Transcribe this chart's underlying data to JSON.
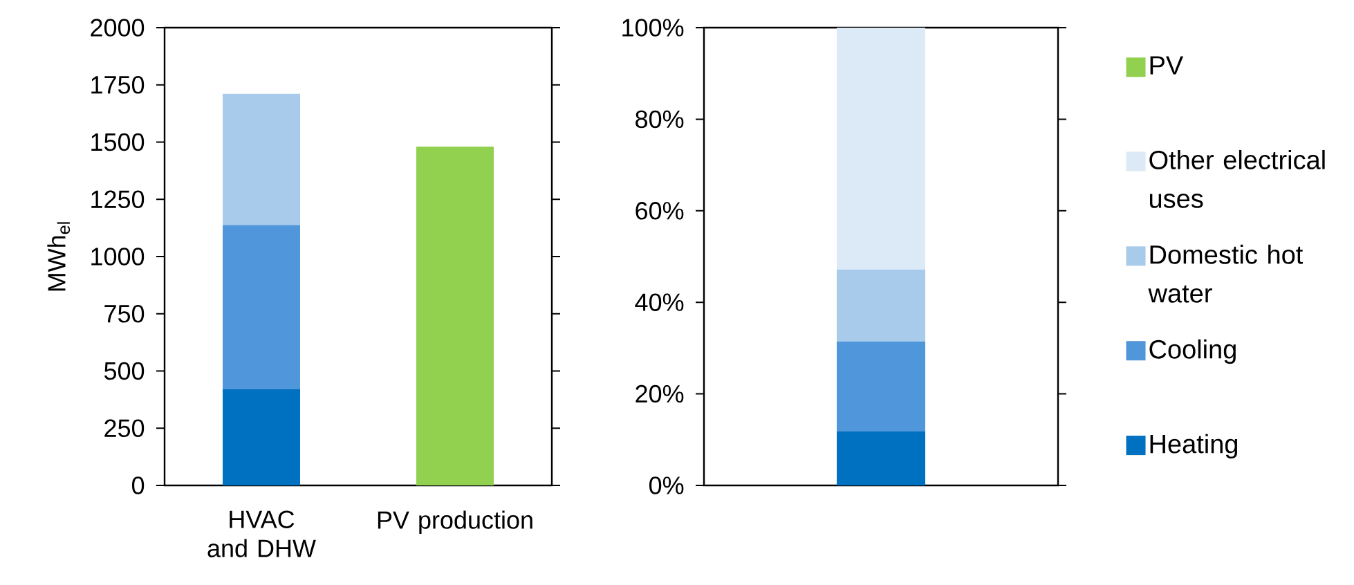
{
  "chart_data": [
    {
      "type": "bar",
      "stacked": true,
      "categories": [
        "HVAC and DHW",
        "PV production"
      ],
      "ylabel": "MWh$_{el}$",
      "ylim": [
        0,
        2000
      ],
      "yticks": [
        0,
        250,
        500,
        750,
        1000,
        1250,
        1500,
        1750,
        2000
      ],
      "grid": false,
      "legend": false,
      "series": [
        {
          "color": "#0070c0",
          "values": [
            420,
            null
          ]
        },
        {
          "color": "#5096da",
          "values": [
            718,
            null
          ]
        },
        {
          "color": "#a8cbec",
          "values": [
            573,
            null
          ]
        },
        {
          "color": "#92d050",
          "values": [
            null,
            1480
          ]
        }
      ]
    },
    {
      "type": "bar",
      "stacked": true,
      "categories": [
        null
      ],
      "ylim": [
        0,
        100
      ],
      "yticks": [
        {
          "value": 0,
          "label": "0%"
        },
        {
          "value": 20,
          "label": "20%"
        },
        {
          "value": 40,
          "label": "40%"
        },
        {
          "value": 60,
          "label": "60%"
        },
        {
          "value": 80,
          "label": "80%"
        },
        {
          "value": 100,
          "label": "100%"
        }
      ],
      "grid": false,
      "legend": "right",
      "series": [
        {
          "name": "Heating",
          "color": "#0070c0",
          "values": [
            11.8
          ]
        },
        {
          "name": "Cooling",
          "color": "#5096da",
          "values": [
            19.7
          ]
        },
        {
          "name": "Domestic hot water",
          "color": "#a8cbec",
          "values": [
            15.7
          ]
        },
        {
          "name": "Other electrical uses",
          "color": "#dce9f6",
          "values": [
            52.8
          ]
        },
        {
          "name": "PV",
          "color": "#92d050",
          "values": [
            null
          ]
        }
      ]
    }
  ]
}
